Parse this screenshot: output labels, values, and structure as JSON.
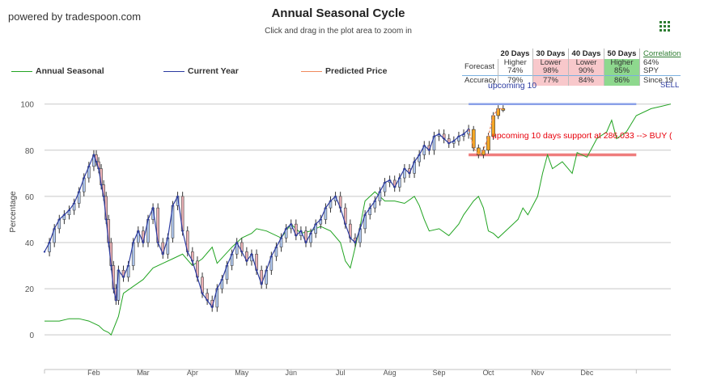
{
  "branding": {
    "text": "powered by tradespoon.com"
  },
  "header": {
    "title": "Annual Seasonal Cycle",
    "subtitle": "Click and drag in the plot area to zoom in"
  },
  "legend": [
    {
      "label": "Annual Seasonal",
      "color": "#22a422"
    },
    {
      "label": "Current Year",
      "color": "#2b3aa0"
    },
    {
      "label": "Predicted Price",
      "color": "#f08a5d"
    }
  ],
  "forecast_table": {
    "headers": [
      "20 Days",
      "30 Days",
      "40 Days",
      "50 Days"
    ],
    "row_labels": {
      "forecast": "Forecast",
      "accuracy": "Accuracy"
    },
    "forecast": [
      {
        "direction": "Higher",
        "pct": "74%",
        "status": "up"
      },
      {
        "direction": "Lower",
        "pct": "98%",
        "status": "down"
      },
      {
        "direction": "Lower",
        "pct": "90%",
        "status": "down"
      },
      {
        "direction": "Higher",
        "pct": "85%",
        "status": "up"
      }
    ],
    "accuracy": [
      "79%",
      "77%",
      "84%",
      "86%"
    ],
    "correlation": {
      "label": "Correlation",
      "pct": "64%",
      "ticker": "SPY",
      "since": "Since 19"
    }
  },
  "annotations": {
    "upcoming_sell": "upcoming 10",
    "sell_suffix": "SELL",
    "support_buy": "upcoming 10 days support at 286.033 --> BUY (",
    "sell_color": "#2b3aa0",
    "buy_color": "#e8000b"
  },
  "chart_data": {
    "type": "line",
    "title": "Annual Seasonal Cycle",
    "subtitle": "Click and drag in the plot area to zoom in",
    "xlabel": "",
    "ylabel": "Percentage",
    "ylim": [
      -15,
      102
    ],
    "yticks": [
      0,
      20,
      40,
      60,
      80,
      100
    ],
    "xlim": [
      0,
      12.7
    ],
    "x_unit": "months from Jan 1",
    "month_ticks": [
      {
        "label": "Feb",
        "x": 1
      },
      {
        "label": "Mar",
        "x": 2
      },
      {
        "label": "Apr",
        "x": 3
      },
      {
        "label": "May",
        "x": 4
      },
      {
        "label": "Jun",
        "x": 5
      },
      {
        "label": "Jul",
        "x": 6
      },
      {
        "label": "Aug",
        "x": 7
      },
      {
        "label": "Sep",
        "x": 8
      },
      {
        "label": "Oct",
        "x": 9
      },
      {
        "label": "Nov",
        "x": 10
      },
      {
        "label": "Dec",
        "x": 11
      }
    ],
    "grid": true,
    "legend_position": "top-left",
    "series": [
      {
        "name": "Annual Seasonal",
        "color": "#22a422",
        "points": [
          [
            0.0,
            6
          ],
          [
            0.3,
            6
          ],
          [
            0.5,
            7
          ],
          [
            0.7,
            7
          ],
          [
            0.9,
            6
          ],
          [
            1.0,
            5
          ],
          [
            1.1,
            4
          ],
          [
            1.2,
            2
          ],
          [
            1.3,
            1
          ],
          [
            1.35,
            0
          ],
          [
            1.5,
            8
          ],
          [
            1.6,
            18
          ],
          [
            1.8,
            21
          ],
          [
            2.0,
            24
          ],
          [
            2.2,
            29
          ],
          [
            2.4,
            31
          ],
          [
            2.6,
            33
          ],
          [
            2.8,
            35
          ],
          [
            3.0,
            30
          ],
          [
            3.2,
            33
          ],
          [
            3.4,
            38
          ],
          [
            3.5,
            31
          ],
          [
            3.8,
            38
          ],
          [
            4.0,
            42
          ],
          [
            4.2,
            44
          ],
          [
            4.3,
            46
          ],
          [
            4.5,
            45
          ],
          [
            4.8,
            42
          ],
          [
            5.0,
            48
          ],
          [
            5.2,
            44
          ],
          [
            5.4,
            45
          ],
          [
            5.6,
            47
          ],
          [
            5.8,
            45
          ],
          [
            6.0,
            40
          ],
          [
            6.1,
            32
          ],
          [
            6.2,
            29
          ],
          [
            6.3,
            38
          ],
          [
            6.4,
            47
          ],
          [
            6.5,
            58
          ],
          [
            6.7,
            62
          ],
          [
            6.9,
            58
          ],
          [
            7.1,
            58
          ],
          [
            7.3,
            57
          ],
          [
            7.5,
            60
          ],
          [
            7.6,
            56
          ],
          [
            7.7,
            50
          ],
          [
            7.8,
            45
          ],
          [
            8.0,
            46
          ],
          [
            8.2,
            43
          ],
          [
            8.4,
            48
          ],
          [
            8.5,
            52
          ],
          [
            8.6,
            55
          ],
          [
            8.7,
            58
          ],
          [
            8.8,
            60
          ],
          [
            8.9,
            55
          ],
          [
            9.0,
            45
          ],
          [
            9.1,
            44
          ],
          [
            9.2,
            42
          ],
          [
            9.4,
            46
          ],
          [
            9.6,
            50
          ],
          [
            9.7,
            55
          ],
          [
            9.8,
            52
          ],
          [
            10.0,
            60
          ],
          [
            10.1,
            70
          ],
          [
            10.2,
            78
          ],
          [
            10.3,
            72
          ],
          [
            10.5,
            75
          ],
          [
            10.7,
            70
          ],
          [
            10.8,
            79
          ],
          [
            11.0,
            77
          ],
          [
            11.2,
            85
          ],
          [
            11.4,
            88
          ],
          [
            11.5,
            93
          ],
          [
            11.6,
            85
          ],
          [
            11.8,
            88
          ],
          [
            12.0,
            95
          ],
          [
            12.3,
            98
          ],
          [
            12.5,
            99
          ],
          [
            12.7,
            100
          ]
        ]
      },
      {
        "name": "Current Year",
        "color": "#2b3aa0",
        "points": [
          [
            0.0,
            36
          ],
          [
            0.1,
            40
          ],
          [
            0.2,
            46
          ],
          [
            0.3,
            50
          ],
          [
            0.4,
            52
          ],
          [
            0.5,
            54
          ],
          [
            0.6,
            57
          ],
          [
            0.7,
            62
          ],
          [
            0.8,
            68
          ],
          [
            0.9,
            73
          ],
          [
            1.0,
            78
          ],
          [
            1.05,
            75
          ],
          [
            1.1,
            72
          ],
          [
            1.15,
            65
          ],
          [
            1.2,
            60
          ],
          [
            1.25,
            50
          ],
          [
            1.3,
            40
          ],
          [
            1.35,
            30
          ],
          [
            1.4,
            20
          ],
          [
            1.45,
            15
          ],
          [
            1.5,
            28
          ],
          [
            1.6,
            25
          ],
          [
            1.7,
            30
          ],
          [
            1.8,
            40
          ],
          [
            1.9,
            45
          ],
          [
            2.0,
            40
          ],
          [
            2.1,
            50
          ],
          [
            2.2,
            55
          ],
          [
            2.3,
            40
          ],
          [
            2.4,
            35
          ],
          [
            2.5,
            42
          ],
          [
            2.6,
            56
          ],
          [
            2.7,
            60
          ],
          [
            2.8,
            45
          ],
          [
            2.9,
            36
          ],
          [
            3.0,
            32
          ],
          [
            3.1,
            25
          ],
          [
            3.2,
            18
          ],
          [
            3.3,
            15
          ],
          [
            3.4,
            12
          ],
          [
            3.5,
            20
          ],
          [
            3.6,
            24
          ],
          [
            3.7,
            30
          ],
          [
            3.8,
            35
          ],
          [
            3.9,
            40
          ],
          [
            4.0,
            36
          ],
          [
            4.1,
            32
          ],
          [
            4.2,
            35
          ],
          [
            4.3,
            28
          ],
          [
            4.4,
            22
          ],
          [
            4.5,
            28
          ],
          [
            4.6,
            34
          ],
          [
            4.7,
            38
          ],
          [
            4.8,
            42
          ],
          [
            4.9,
            46
          ],
          [
            5.0,
            48
          ],
          [
            5.1,
            43
          ],
          [
            5.2,
            45
          ],
          [
            5.3,
            40
          ],
          [
            5.4,
            44
          ],
          [
            5.5,
            48
          ],
          [
            5.6,
            50
          ],
          [
            5.7,
            55
          ],
          [
            5.8,
            58
          ],
          [
            5.9,
            60
          ],
          [
            6.0,
            55
          ],
          [
            6.1,
            48
          ],
          [
            6.2,
            42
          ],
          [
            6.3,
            40
          ],
          [
            6.4,
            46
          ],
          [
            6.5,
            52
          ],
          [
            6.6,
            55
          ],
          [
            6.7,
            58
          ],
          [
            6.8,
            62
          ],
          [
            6.9,
            66
          ],
          [
            7.0,
            67
          ],
          [
            7.1,
            64
          ],
          [
            7.2,
            68
          ],
          [
            7.3,
            72
          ],
          [
            7.4,
            70
          ],
          [
            7.5,
            75
          ],
          [
            7.6,
            78
          ],
          [
            7.7,
            82
          ],
          [
            7.8,
            80
          ],
          [
            7.9,
            86
          ],
          [
            8.0,
            87
          ],
          [
            8.1,
            85
          ],
          [
            8.2,
            83
          ],
          [
            8.3,
            84
          ],
          [
            8.4,
            86
          ],
          [
            8.5,
            87
          ],
          [
            8.6,
            89
          ]
        ]
      },
      {
        "name": "Predicted Price",
        "color": "#f08a5d",
        "points": [
          [
            8.6,
            89
          ],
          [
            8.7,
            81
          ],
          [
            8.8,
            78
          ],
          [
            8.9,
            80
          ],
          [
            9.0,
            86
          ],
          [
            9.1,
            95
          ],
          [
            9.2,
            98
          ],
          [
            9.3,
            98
          ]
        ]
      }
    ],
    "support_line": {
      "value": 78,
      "x_start": 8.6,
      "x_end": 12.0,
      "color": "#ef7d7d"
    },
    "resistance_line": {
      "value": 100,
      "x_start": 8.6,
      "x_end": 12.0,
      "color": "#8aa0e8"
    }
  }
}
